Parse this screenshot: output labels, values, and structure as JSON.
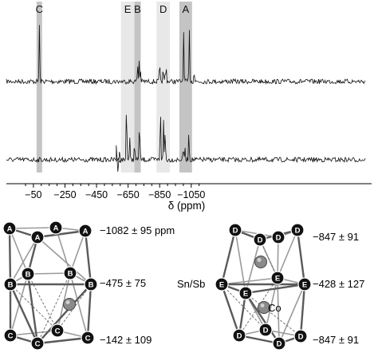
{
  "chart_data": {
    "type": "line",
    "xlabel": "δ (ppm)",
    "x_ticks": [
      "−50",
      "−250",
      "−450",
      "−650",
      "−850",
      "−1050"
    ],
    "x_tick_values": [
      -50,
      -250,
      -450,
      -650,
      -850,
      -1050
    ],
    "xlim": [
      0,
      -1100
    ],
    "x_reversed": true,
    "bands": [
      {
        "label": "C",
        "from": -70,
        "to": -105,
        "shade": "#c4c4c4"
      },
      {
        "label": "E",
        "from": -605,
        "to": -690,
        "shade": "#e8e8e8"
      },
      {
        "label": "B",
        "from": -690,
        "to": -730,
        "shade": "#c4c4c4"
      },
      {
        "label": "D",
        "from": -830,
        "to": -915,
        "shade": "#e8e8e8"
      },
      {
        "label": "A",
        "from": -975,
        "to": -1055,
        "shade": "#c4c4c4"
      }
    ],
    "series": [
      {
        "peaks": [
          {
            "x": -88,
            "h": 0.95
          },
          {
            "x": -710,
            "h": 0.28
          },
          {
            "x": -720,
            "h": 0.35
          },
          {
            "x": -728,
            "h": 0.18
          },
          {
            "x": -850,
            "h": 0.3
          },
          {
            "x": -872,
            "h": 0.2
          },
          {
            "x": -885,
            "h": 0.15
          },
          {
            "x": -892,
            "h": 0.22
          },
          {
            "x": -1002,
            "h": 0.8
          },
          {
            "x": -1038,
            "h": 0.92
          },
          {
            "x": -1068,
            "h": 0.2
          }
        ]
      },
      {
        "peaks": [
          {
            "x": -640,
            "h": 0.85
          },
          {
            "x": -660,
            "h": 0.3
          },
          {
            "x": -690,
            "h": 0.22
          },
          {
            "x": -720,
            "h": 0.35
          },
          {
            "x": -725,
            "h": 0.22
          },
          {
            "x": -855,
            "h": 0.75
          },
          {
            "x": -875,
            "h": 0.55
          },
          {
            "x": -885,
            "h": 0.4
          },
          {
            "x": -1000,
            "h": 0.18
          },
          {
            "x": -1010,
            "h": 0.15
          },
          {
            "x": -1035,
            "h": 0.4
          }
        ]
      }
    ]
  },
  "left_cluster": {
    "shifts": [
      "−1082 ± 95 ppm",
      "−475 ± 75",
      "−142 ± 109"
    ]
  },
  "right_cluster": {
    "shifts": [
      "−847 ± 91",
      "−428 ± 127",
      "−847 ± 91"
    ],
    "site_label": "Sn/Sb",
    "center_label": "Co"
  },
  "colors": {
    "dark_band": "#c4c4c4",
    "light_band": "#e8e8e8",
    "atom_fill": "#111111",
    "co_fill": "#8a8a8a"
  }
}
